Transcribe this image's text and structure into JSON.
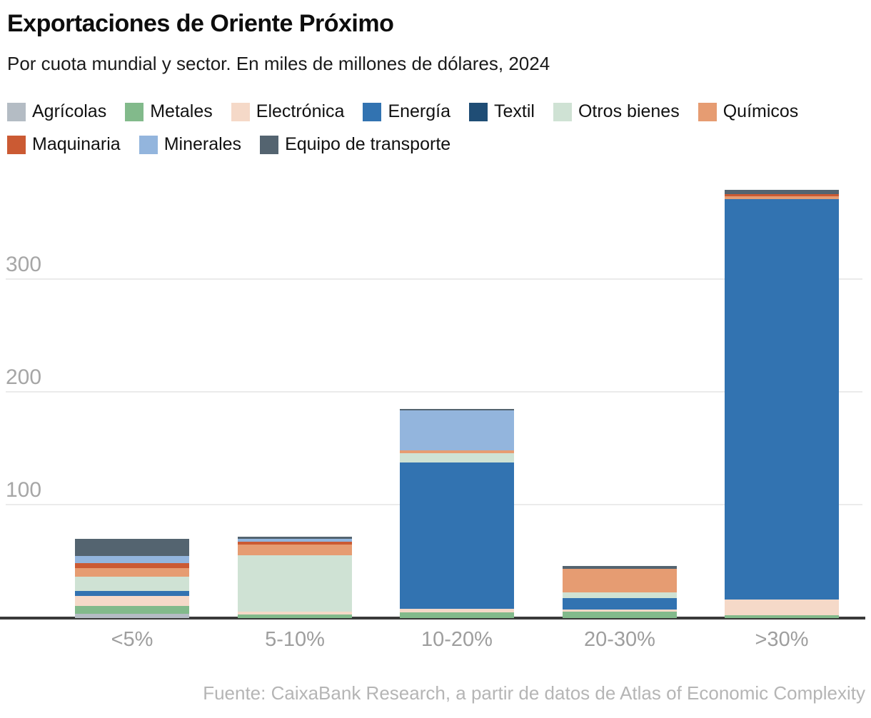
{
  "header": {
    "title": "Exportaciones de Oriente Próximo",
    "subtitle": "Por cuota mundial y sector. En miles de millones de dólares, 2024"
  },
  "chart_data": {
    "type": "bar",
    "stacked": true,
    "title": "Exportaciones de Oriente Próximo",
    "subtitle": "Por cuota mundial y sector. En miles de millones de dólares, 2024",
    "xlabel": "",
    "ylabel": "",
    "categories": [
      "<5%",
      "5-10%",
      "10-20%",
      "20-30%",
      ">30%"
    ],
    "yticks": [
      100,
      200,
      300
    ],
    "ylim": [
      0,
      400
    ],
    "grid": true,
    "legend_position": "top",
    "legend_row_split": 7,
    "series": [
      {
        "name": "Agrícolas",
        "color": "#b4bcc4",
        "values": [
          3.5,
          0,
          0,
          0,
          0
        ]
      },
      {
        "name": "Metales",
        "color": "#82ba8b",
        "values": [
          7,
          3,
          5,
          5.5,
          2.5
        ]
      },
      {
        "name": "Electrónica",
        "color": "#f5d9c8",
        "values": [
          9,
          2.5,
          3,
          2,
          14
        ]
      },
      {
        "name": "Energía",
        "color": "#3273b1",
        "values": [
          4.5,
          0,
          130,
          10.5,
          355
        ]
      },
      {
        "name": "Textil",
        "color": "#1f4d75",
        "values": [
          0,
          0,
          0,
          0,
          0
        ]
      },
      {
        "name": "Otros bienes",
        "color": "#cfe2d4",
        "values": [
          13,
          50,
          8.5,
          4.5,
          0
        ]
      },
      {
        "name": "Químicos",
        "color": "#e69c72",
        "values": [
          7.5,
          10,
          2.5,
          21.5,
          2.5
        ]
      },
      {
        "name": "Maquinaria",
        "color": "#cb5a33",
        "values": [
          4,
          2.5,
          0,
          0,
          2
        ]
      },
      {
        "name": "Minerales",
        "color": "#93b5dd",
        "values": [
          6.5,
          2.5,
          35,
          0,
          0
        ]
      },
      {
        "name": "Equipo de transporte",
        "color": "#546470",
        "values": [
          15,
          1.5,
          1.5,
          2,
          4
        ]
      }
    ],
    "totals": [
      70,
      72,
      185.5,
      46,
      380
    ]
  },
  "footer": {
    "source": "Fuente: CaixaBank Research, a partir de datos de Atlas of Economic Complexity"
  }
}
